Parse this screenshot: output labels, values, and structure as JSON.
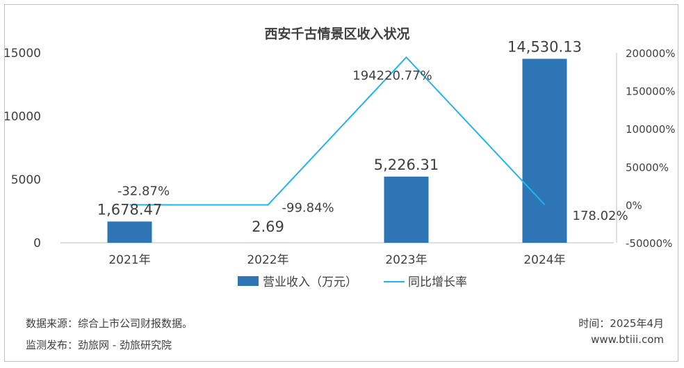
{
  "chart_data": {
    "type": "bar+line",
    "title": "西安千古情景区收入状况",
    "categories": [
      "2021年",
      "2022年",
      "2023年",
      "2024年"
    ],
    "series": [
      {
        "name": "营业收入（万元）",
        "type": "bar",
        "axis": "left",
        "color": "#2e75b6",
        "values": [
          1678.47,
          2.69,
          5226.31,
          14530.13
        ],
        "labels": [
          "1,678.47",
          "2.69",
          "5,226.31",
          "14,530.13"
        ]
      },
      {
        "name": "同比增长率",
        "type": "line",
        "axis": "right",
        "color": "#1fb4f0",
        "values": [
          -32.87,
          -99.84,
          194220.77,
          178.02
        ],
        "labels": [
          "-32.87%",
          "-99.84%",
          "194220.77%",
          "178.02%"
        ]
      }
    ],
    "y_left": {
      "min": 0,
      "max": 15000,
      "ticks": [
        "0",
        "5000",
        "10000",
        "15000"
      ],
      "tick_values": [
        0,
        5000,
        10000,
        15000
      ]
    },
    "y_right": {
      "min": -50000,
      "max": 200000,
      "ticks": [
        "-50000%",
        "0%",
        "50000%",
        "100000%",
        "150000%",
        "200000%"
      ],
      "tick_values": [
        -50000,
        0,
        50000,
        100000,
        150000,
        200000
      ]
    },
    "legend_position": "bottom",
    "grid": false
  },
  "footer": {
    "source": "数据来源：综合上市公司财报数据。",
    "publisher": "监测发布：劲旅网 - 劲旅研究院",
    "time": "时间：2025年4月",
    "website": "www.btiii.com"
  }
}
